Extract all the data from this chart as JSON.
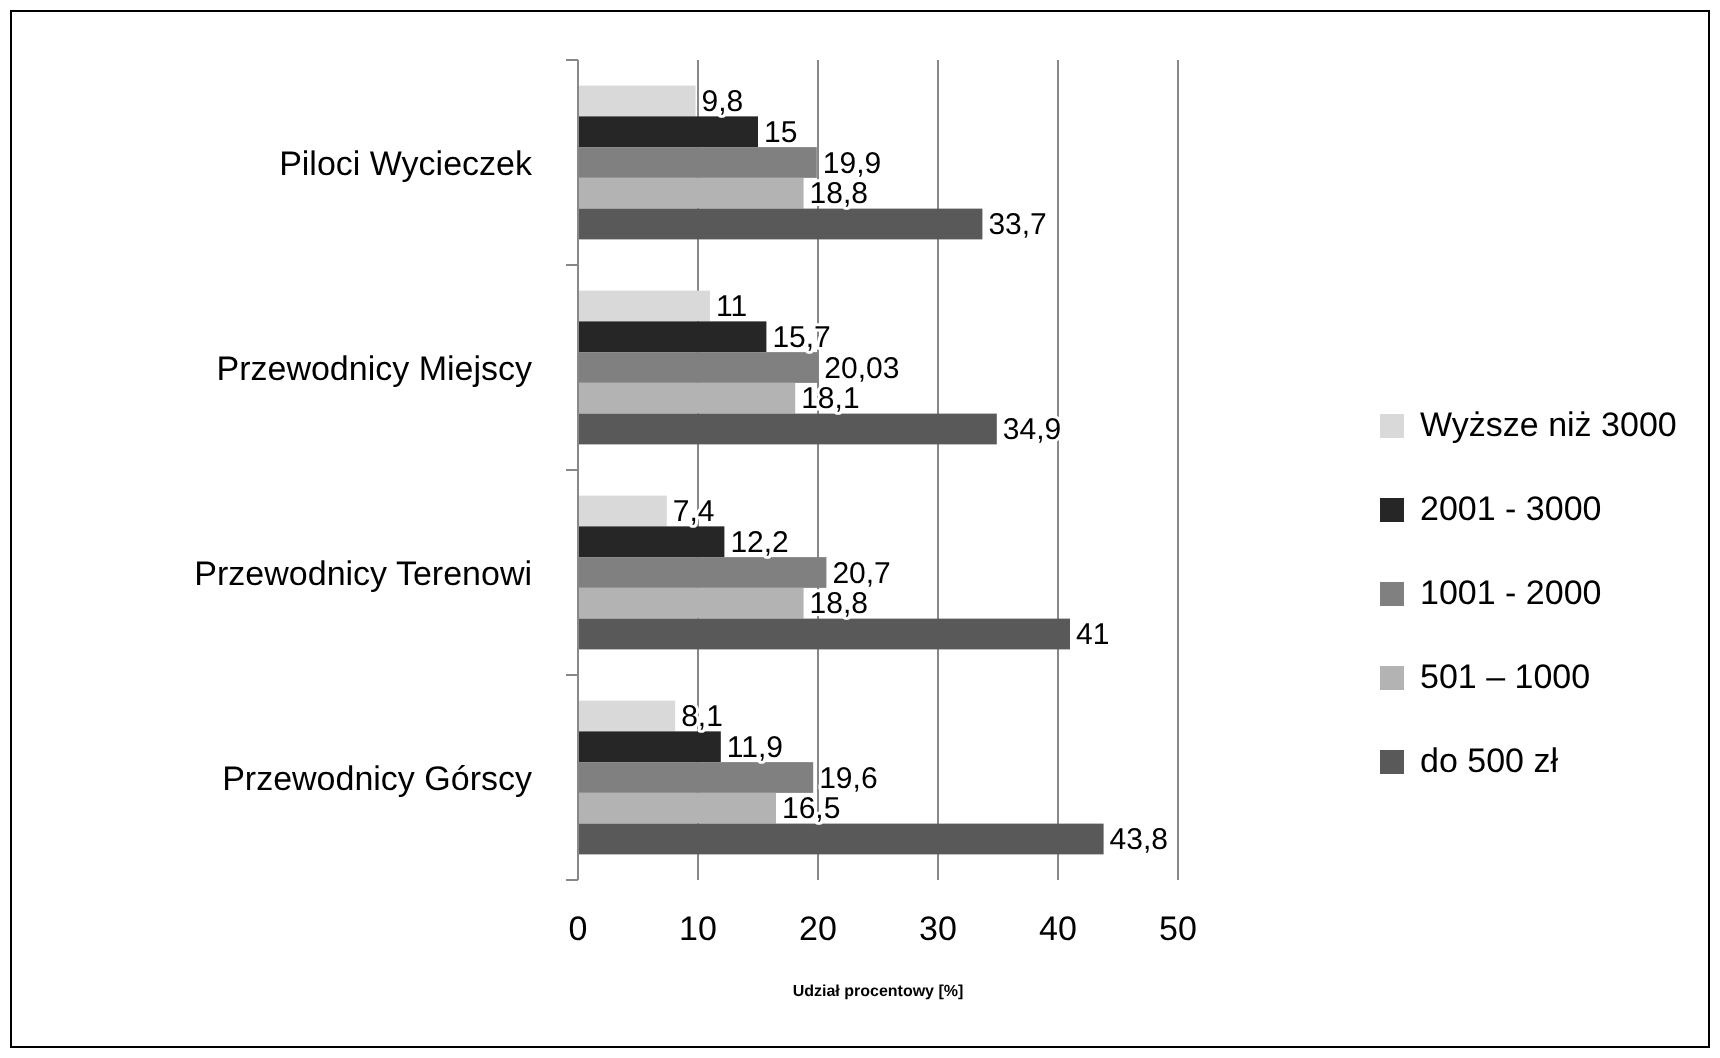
{
  "chart_data": {
    "type": "bar",
    "orientation": "horizontal",
    "xlabel": "Udział procentowy [%]",
    "categories": [
      "Piloci Wycieczek",
      "Przewodnicy Miejscy",
      "Przewodnicy Terenowi",
      "Przewodnicy Górscy"
    ],
    "series": [
      {
        "name": "Wyższe niż 3000",
        "color": "#d9d9d9",
        "values": [
          9.8,
          11,
          7.4,
          8.1
        ],
        "value_labels": [
          "9,8",
          "11",
          "7,4",
          "8,1"
        ]
      },
      {
        "name": "2001 - 3000",
        "color": "#262626",
        "values": [
          15,
          15.7,
          12.2,
          11.9
        ],
        "value_labels": [
          "15",
          "15,7",
          "12,2",
          "11,9"
        ]
      },
      {
        "name": "1001 - 2000",
        "color": "#808080",
        "values": [
          19.9,
          20.03,
          20.7,
          19.6
        ],
        "value_labels": [
          "19,9",
          "20,03",
          "20,7",
          "19,6"
        ]
      },
      {
        "name": "501 – 1000",
        "color": "#b3b3b3",
        "values": [
          18.8,
          18.1,
          18.8,
          16.5
        ],
        "value_labels": [
          "18,8",
          "18,1",
          "18,8",
          "16,5"
        ]
      },
      {
        "name": "do 500 zł",
        "color": "#595959",
        "values": [
          33.7,
          34.9,
          41,
          43.8
        ],
        "value_labels": [
          "33,7",
          "34,9",
          "41",
          "43,8"
        ]
      }
    ],
    "xlim": [
      0,
      50
    ],
    "xticks": [
      0,
      10,
      20,
      30,
      40,
      50
    ],
    "grid": "x",
    "legend": "right"
  }
}
